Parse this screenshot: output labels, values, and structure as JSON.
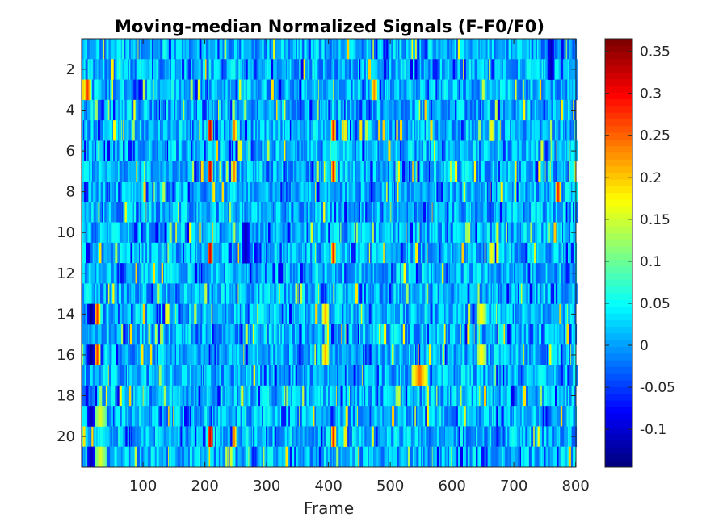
{
  "chart_data": {
    "type": "heatmap",
    "title": "Moving-median Normalized Signals (F-F0/F0)",
    "xlabel": "Frame",
    "ylabel": "",
    "xlim": [
      0.5,
      800.5
    ],
    "ylim": [
      0.5,
      21.5
    ],
    "x_ticks": [
      100,
      200,
      300,
      400,
      500,
      600,
      700,
      800
    ],
    "y_ticks": [
      2,
      4,
      6,
      8,
      10,
      12,
      14,
      16,
      18,
      20
    ],
    "n_rows": 21,
    "n_frames": 800,
    "colormap": "jet",
    "clim": [
      -0.145,
      0.365
    ],
    "colorbar_ticks": [
      -0.1,
      -0.05,
      0,
      0.05,
      0.1,
      0.15,
      0.2,
      0.25,
      0.3,
      0.35
    ],
    "colorbar_tick_labels": [
      "-0.1",
      "-0.05",
      "0",
      "0.05",
      "0.1",
      "0.15",
      "0.2",
      "0.25",
      "0.3",
      "0.35"
    ],
    "baseline_value": 0.01,
    "noise_amplitude": 0.05,
    "events": [
      {
        "frames": [
          205,
          212
        ],
        "rows": [
          5,
          7,
          11,
          20
        ],
        "value": 0.34
      },
      {
        "frames": [
          245,
          250
        ],
        "rows": [
          5,
          7,
          20
        ],
        "value": 0.26
      },
      {
        "frames": [
          405,
          411
        ],
        "rows": [
          5,
          7,
          11,
          20
        ],
        "value": 0.3
      },
      {
        "frames": [
          425,
          430
        ],
        "rows": [
          5,
          20
        ],
        "value": 0.2
      },
      {
        "frames": [
          660,
          668
        ],
        "rows": [
          5,
          11
        ],
        "value": 0.18
      },
      {
        "frames": [
          10,
          22
        ],
        "rows": [
          14,
          16
        ],
        "value": -0.14
      },
      {
        "frames": [
          22,
          30
        ],
        "rows": [
          14,
          16
        ],
        "value": 0.28
      },
      {
        "frames": [
          390,
          400
        ],
        "rows": [
          14,
          16
        ],
        "value": 0.22
      },
      {
        "frames": [
          640,
          655
        ],
        "rows": [
          14,
          16
        ],
        "value": 0.18
      },
      {
        "frames": [
          535,
          560
        ],
        "rows": [
          17
        ],
        "value": 0.25
      },
      {
        "frames": [
          10,
          22
        ],
        "rows": [
          19,
          21
        ],
        "value": -0.12
      },
      {
        "frames": [
          22,
          40
        ],
        "rows": [
          19,
          21
        ],
        "value": 0.16
      },
      {
        "frames": [
          5,
          15
        ],
        "rows": [
          3
        ],
        "value": 0.28
      },
      {
        "frames": [
          470,
          478
        ],
        "rows": [
          3
        ],
        "value": 0.24
      },
      {
        "frames": [
          260,
          272
        ],
        "rows": [
          10,
          11
        ],
        "value": -0.12
      },
      {
        "frames": [
          755,
          765
        ],
        "rows": [
          1,
          2
        ],
        "value": -0.12
      },
      {
        "frames": [
          768,
          775
        ],
        "rows": [
          8
        ],
        "value": 0.3
      }
    ]
  }
}
